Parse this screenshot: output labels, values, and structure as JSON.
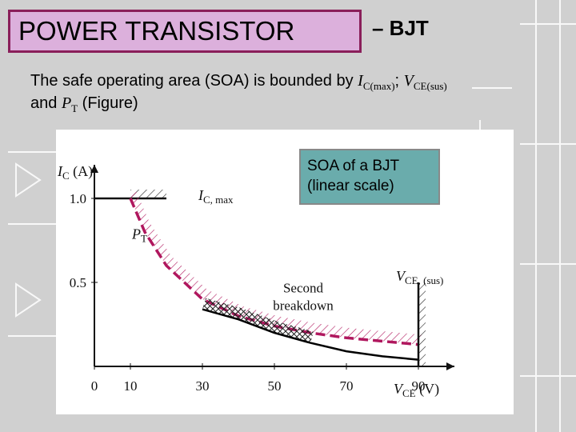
{
  "slide": {
    "title": "POWER TRANSISTOR",
    "title_suffix": "– BJT",
    "desc_line1_prefix": "The safe operating area (SOA) is bounded by ",
    "ic_symbol": "I",
    "ic_subscript": "C(max)",
    "separator": "; ",
    "vce_symbol": "V",
    "vce_subscript": "CE(sus)",
    "desc_line2_prefix": "and ",
    "pt_symbol": "P",
    "pt_subscript": "T",
    "desc_line2_suffix": " (Figure)",
    "callout_line1": "SOA of a BJT",
    "callout_line2": "(linear scale)"
  },
  "colors": {
    "title_bg": "#dcb0dc",
    "title_border": "#8a1f5a",
    "callout_bg": "#6aacac",
    "pt_curve": "#b0175e",
    "second_breakdown_curve": "#000000"
  },
  "chart_data": {
    "type": "line",
    "ylabel_symbol": "I",
    "ylabel_subscript": "C",
    "ylabel_unit": " (A)",
    "xlabel_symbol": "V",
    "xlabel_subscript": "CE",
    "xlabel_unit": "  (V)",
    "x_ticks": [
      "0",
      "10",
      "30",
      "50",
      "70",
      "90"
    ],
    "y_ticks": [
      "1.0",
      "0.5"
    ],
    "xlim": [
      0,
      100
    ],
    "ylim": [
      0,
      1.2
    ],
    "annotations": {
      "ic_max_symbol": "I",
      "ic_max_subscript": "C, max",
      "pt_symbol": "P",
      "pt_subscript": "T",
      "vce_sus_symbol": "V",
      "vce_sus_subscript": "CE, (sus)",
      "second_breakdown_line1": "Second",
      "second_breakdown_line2": "breakdown"
    },
    "series": [
      {
        "x": [
          0,
          10,
          14,
          20,
          30,
          40,
          50,
          60,
          70,
          80,
          90
        ],
        "y": [
          1.0,
          1.0,
          0.8,
          0.6,
          0.4,
          0.3,
          0.24,
          0.2,
          0.17,
          0.15,
          0.13
        ]
      },
      {
        "x": [
          30,
          40,
          50,
          60,
          70,
          80,
          90
        ],
        "y": [
          0.34,
          0.28,
          0.2,
          0.14,
          0.09,
          0.06,
          0.04
        ]
      }
    ],
    "limits": {
      "ic_max": 1.0,
      "vce_sus": 90
    }
  }
}
